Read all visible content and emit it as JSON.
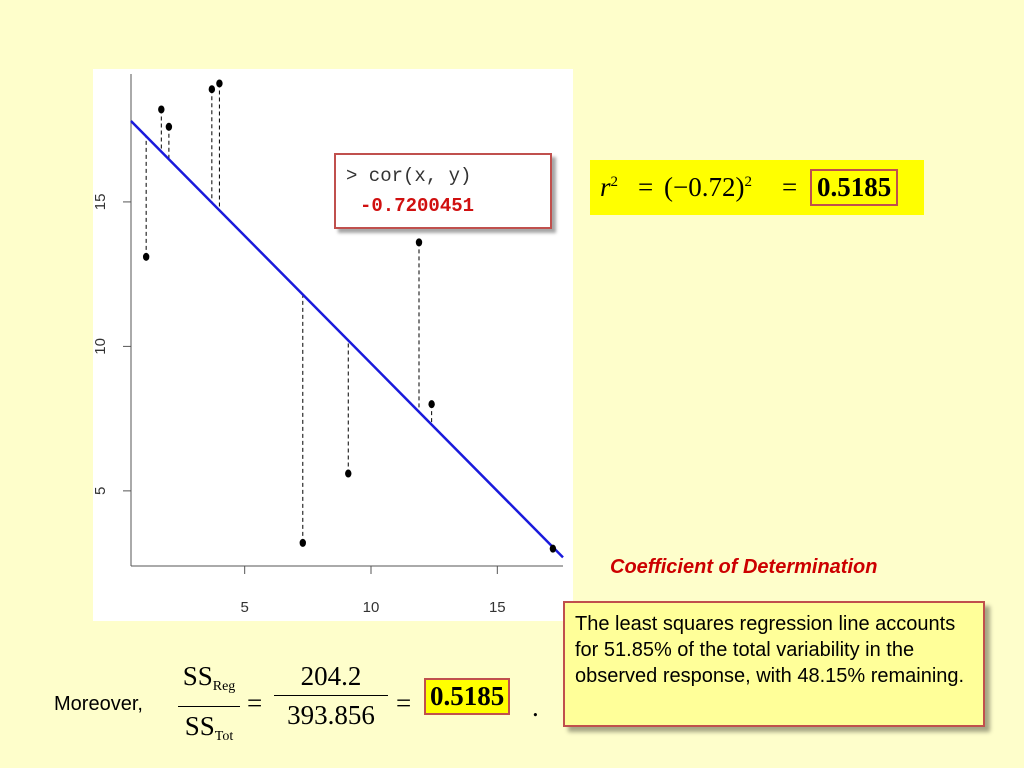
{
  "chart_data": {
    "type": "scatter",
    "title": "",
    "xlabel": "",
    "ylabel": "",
    "xlim": [
      0.5,
      17.6
    ],
    "ylim": [
      2.4,
      19.6
    ],
    "x_ticks": [
      "5",
      "10",
      "15"
    ],
    "y_ticks": [
      "5",
      "10",
      "15"
    ],
    "points": [
      {
        "x": 1.1,
        "y": 13.1
      },
      {
        "x": 1.7,
        "y": 18.2
      },
      {
        "x": 2.0,
        "y": 17.6
      },
      {
        "x": 3.7,
        "y": 18.9
      },
      {
        "x": 4.0,
        "y": 19.1
      },
      {
        "x": 7.3,
        "y": 3.2
      },
      {
        "x": 9.1,
        "y": 5.6
      },
      {
        "x": 11.9,
        "y": 13.6
      },
      {
        "x": 12.4,
        "y": 8.0
      },
      {
        "x": 17.2,
        "y": 3.0
      }
    ],
    "regression_line": {
      "x1": 0.5,
      "y1": 17.8,
      "x2": 17.6,
      "y2": 2.7,
      "color": "#1a1adc"
    },
    "residuals_shown": true
  },
  "cor_box": {
    "command": "> cor(x, y)",
    "value": "-0.7200451"
  },
  "r2_equation": {
    "lhs": "r",
    "exp": "2",
    "eq1": "=",
    "mid": "(−0.72)",
    "mid_exp": "2",
    "eq2": "=",
    "value": "0.5185"
  },
  "coef_title": "Coefficient of Determination",
  "description": "The least squares regression line accounts for 51.85% of the total variability in the observed response, with 48.15% remaining.",
  "moreover": {
    "label": "Moreover,",
    "frac1_num": "SS",
    "frac1_num_sub": "Reg",
    "frac1_den": "SS",
    "frac1_den_sub": "Tot",
    "eq1": "=",
    "frac2_num": "204.2",
    "frac2_den": "393.856",
    "eq2": "=",
    "value": "0.5185",
    "end": "."
  },
  "colors": {
    "background": "#fefecb",
    "accent_red": "#cc0000",
    "highlight": "#ffff00",
    "line_blue": "#1a1adc"
  }
}
